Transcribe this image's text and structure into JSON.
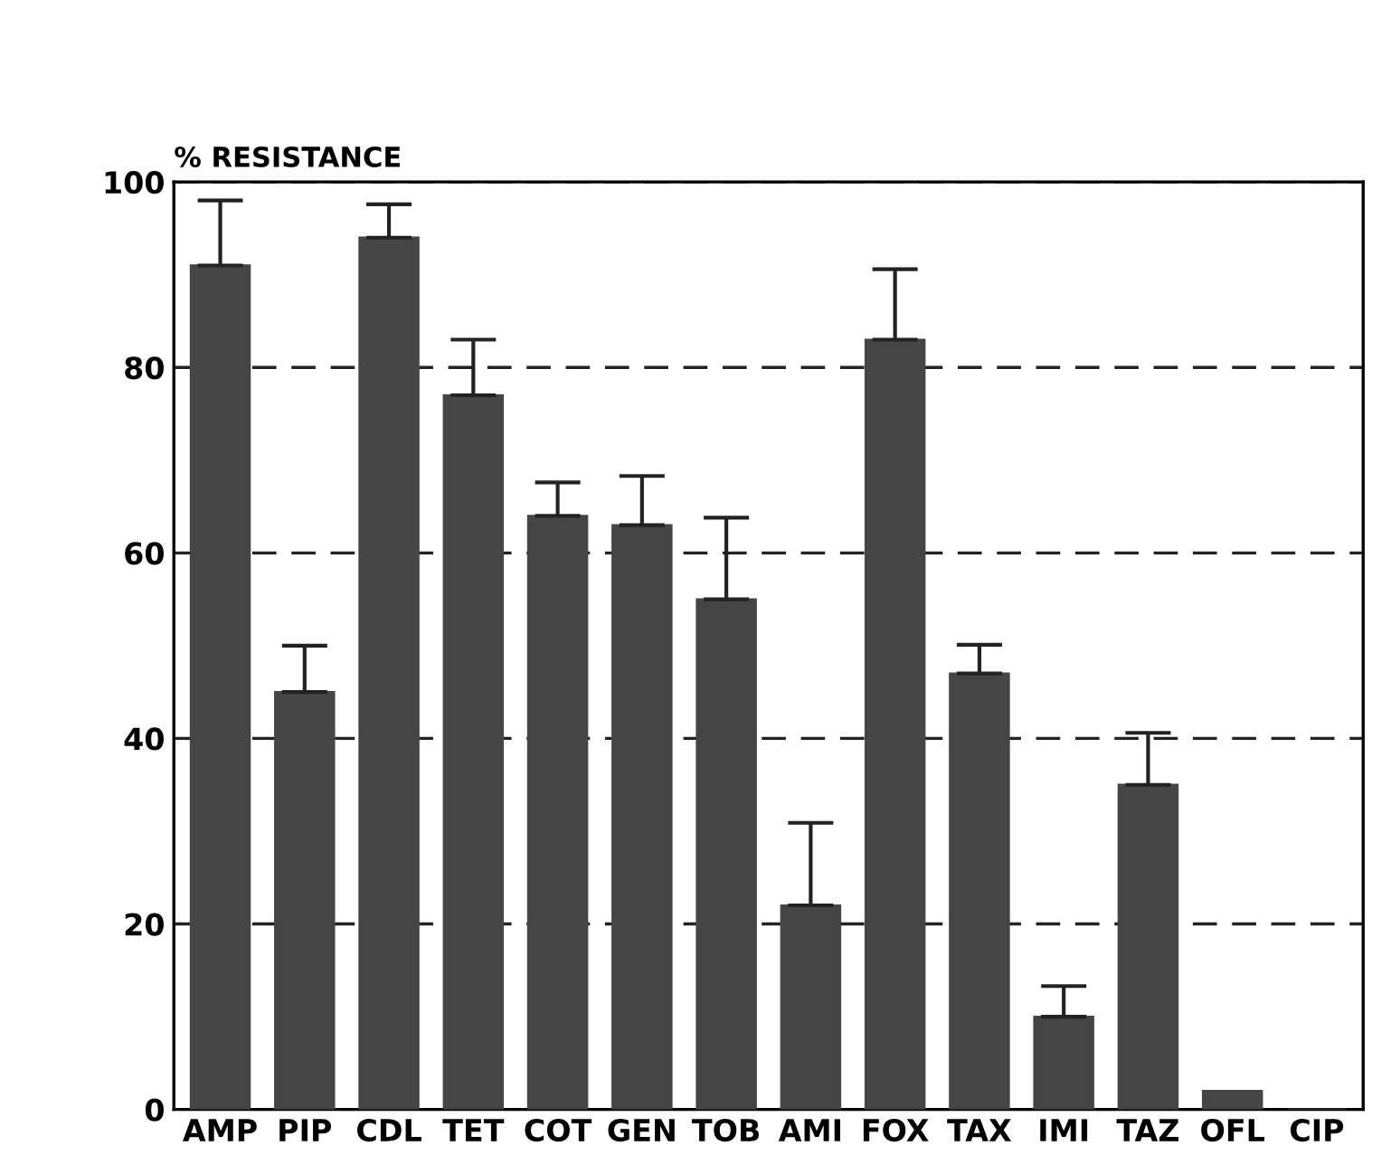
{
  "chart_data": {
    "type": "bar",
    "ylabel": "% RESISTANCE",
    "categories": [
      "AMP",
      "PIP",
      "CDL",
      "TET",
      "COT",
      "GEN",
      "TOB",
      "AMI",
      "FOX",
      "TAX",
      "IMI",
      "TAZ",
      "OFL",
      "CIP"
    ],
    "values": [
      91,
      45,
      94,
      77,
      64,
      63,
      55,
      22,
      83,
      47,
      10,
      35,
      2,
      0
    ],
    "errors": [
      [
        91,
        98
      ],
      [
        45,
        50
      ],
      [
        94,
        97.6
      ],
      [
        77,
        83
      ],
      [
        64,
        67.6
      ],
      [
        63,
        68.3
      ],
      [
        55,
        63.8
      ],
      [
        22,
        30.9
      ],
      [
        83,
        90.6
      ],
      [
        47,
        50.1
      ],
      [
        10,
        13.3
      ],
      [
        35,
        40.6
      ],
      null,
      null
    ],
    "color": "#454545",
    "ylim": [
      0,
      100
    ],
    "yticks": [
      0,
      20,
      40,
      60,
      80,
      100
    ],
    "grid": "y",
    "line_style": "dashed"
  }
}
